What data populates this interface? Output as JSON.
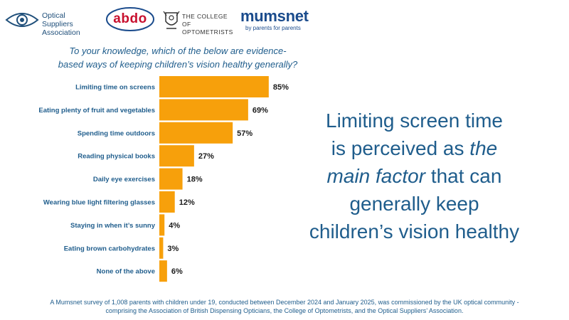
{
  "logos": {
    "osa": {
      "line1": "Optical Suppliers",
      "line2": "Association"
    },
    "abdo": {
      "name": "abdo"
    },
    "college": {
      "line1": "THE COLLEGE OF",
      "line2": "OPTOMETRISTS"
    },
    "mumsnet": {
      "name": "mumsnet",
      "tagline": "by parents for parents"
    }
  },
  "question": {
    "line1": "To your knowledge, which of the below are evidence-",
    "line2": "based ways of keeping children’s vision healthy generally?"
  },
  "headline": {
    "line1": "Limiting screen time",
    "line2_pre": "is perceived as ",
    "line2_em": "the",
    "line3_em": "main factor",
    "line3_post": " that can",
    "line4": "generally keep",
    "line5": "children’s vision healthy"
  },
  "footnote": {
    "line1": "A Mumsnet survey of 1,008 parents with children under 19, conducted between December 2024 and January 2025, was commissioned by the UK optical community -",
    "line2": "comprising the Association of British Dispensing Opticians, the College of Optometrists, and the Optical Suppliers’ Association."
  },
  "colors": {
    "bar": "#f7a00b",
    "text_blue": "#1f5d8c",
    "abdo_red": "#c8102e"
  },
  "chart_data": {
    "type": "bar",
    "orientation": "horizontal",
    "categories": [
      "Limiting time on screens",
      "Eating plenty of fruit and vegetables",
      "Spending time outdoors",
      "Reading physical books",
      "Daily eye exercises",
      "Wearing blue light filtering glasses",
      "Staying in when it’s sunny",
      "Eating brown carbohydrates",
      "None of the above"
    ],
    "values": [
      85,
      69,
      57,
      27,
      18,
      12,
      4,
      3,
      6
    ],
    "value_labels": [
      "85%",
      "69%",
      "57%",
      "27%",
      "18%",
      "12%",
      "4%",
      "3%",
      "6%"
    ],
    "xlim": [
      0,
      100
    ],
    "grid": false,
    "legend": "none"
  }
}
